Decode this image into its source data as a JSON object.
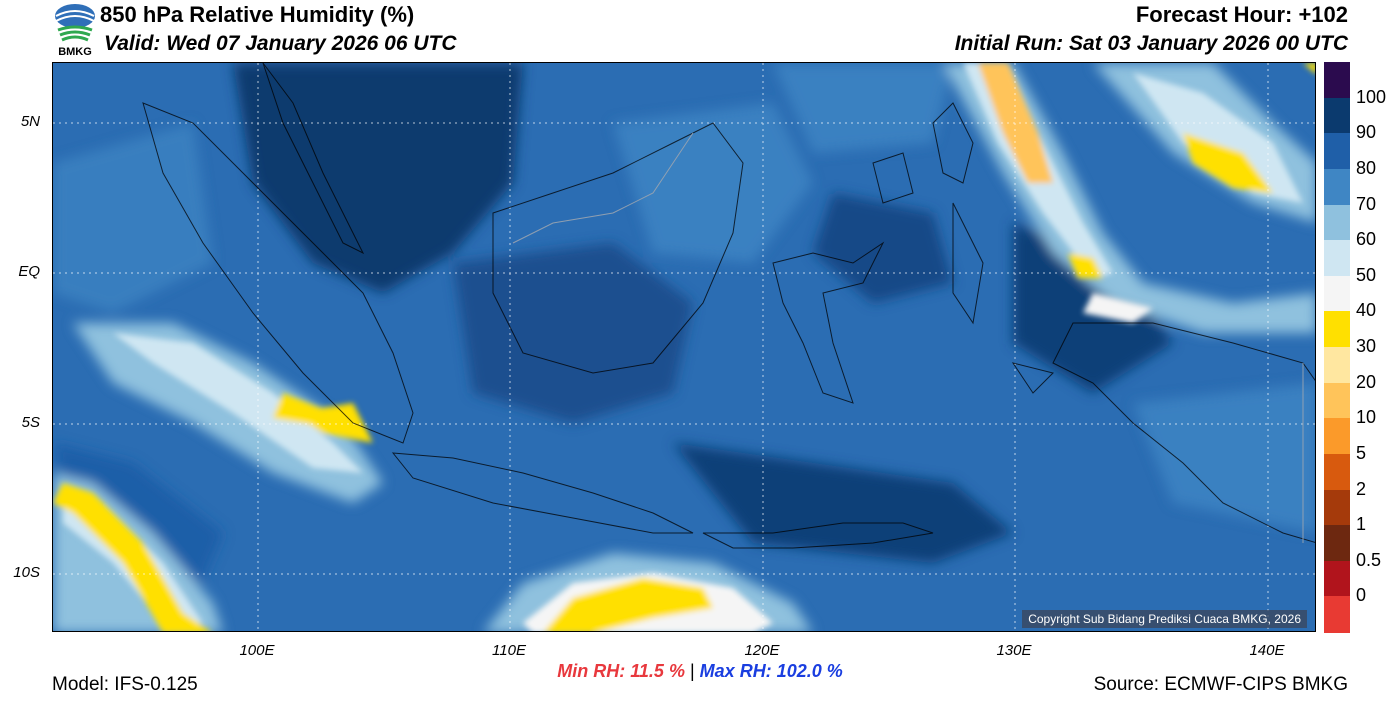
{
  "header": {
    "title": "850 hPa Relative Humidity (%)",
    "valid": "Valid: Wed 07 January 2026 06 UTC",
    "forecast_hour": "Forecast Hour: +102",
    "initial_run": "Initial Run: Sat 03 January 2026 00 UTC",
    "logo_label": "BMKG"
  },
  "map": {
    "lat_labels": [
      "5N",
      "EQ",
      "5S",
      "10S"
    ],
    "lon_labels": [
      "100E",
      "110E",
      "120E",
      "130E",
      "140E"
    ],
    "copyright": "Copyright Sub Bidang Prediksi Cuaca BMKG, 2026"
  },
  "colorbar": {
    "labels": [
      "100",
      "90",
      "80",
      "70",
      "60",
      "50",
      "40",
      "30",
      "20",
      "10",
      "5",
      "2",
      "1",
      "0.5",
      "0"
    ],
    "colors": [
      "#2b0b4e",
      "#0b3a6e",
      "#1f5fa8",
      "#3f86c4",
      "#8fc1de",
      "#cfe6f2",
      "#f5f5f5",
      "#ffe000",
      "#ffe7a0",
      "#ffc45a",
      "#fb9a2a",
      "#d85a0e",
      "#a53a0b",
      "#6d2810",
      "#b1141c",
      "#e83a33"
    ]
  },
  "stats": {
    "min": "Min RH:  11.5 %",
    "separator": "|",
    "max": "Max RH: 102.0 %"
  },
  "footer": {
    "model": "Model: IFS-0.125",
    "source": "Source: ECMWF-CIPS BMKG"
  }
}
